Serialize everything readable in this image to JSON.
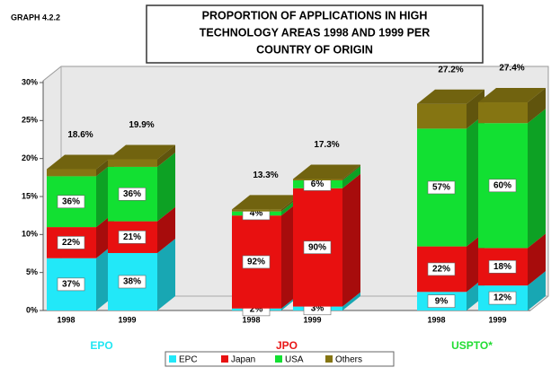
{
  "chart_data": {
    "type": "bar3d_stacked",
    "graph_id": "GRAPH 4.2.2",
    "title_lines": [
      "PROPORTION OF APPLICATIONS IN HIGH",
      "TECHNOLOGY AREAS 1998 AND 1999 PER",
      "COUNTRY OF ORIGIN"
    ],
    "ylim": [
      0,
      30
    ],
    "yticks": [
      {
        "value": 0,
        "label": "0%"
      },
      {
        "value": 5,
        "label": "5%"
      },
      {
        "value": 10,
        "label": "10%"
      },
      {
        "value": 15,
        "label": "15%"
      },
      {
        "value": 20,
        "label": "20%"
      },
      {
        "value": 25,
        "label": "25%"
      },
      {
        "value": 30,
        "label": "30%"
      }
    ],
    "groups": [
      {
        "name": "EPO",
        "color": "#22e6f2",
        "categories": [
          "1998",
          "1999"
        ],
        "totals": [
          18.6,
          19.9
        ],
        "total_labels": [
          "18.6%",
          "19.9%"
        ]
      },
      {
        "name": "JPO",
        "color": "#e81818",
        "categories": [
          "1998",
          "1999"
        ],
        "totals": [
          13.3,
          17.3
        ],
        "total_labels": [
          "13.3%",
          "17.3%"
        ]
      },
      {
        "name": "USPTO*",
        "color": "#22dd33",
        "categories": [
          "1998",
          "1999"
        ],
        "totals": [
          27.2,
          27.4
        ],
        "total_labels": [
          "27.2%",
          "27.4%"
        ]
      }
    ],
    "series": [
      {
        "name": "EPC",
        "color": "#22e8f8",
        "values": [
          37,
          38,
          2,
          3,
          9,
          12
        ],
        "value_labels": [
          "37%",
          "38%",
          "2%",
          "3%",
          "9%",
          "12%"
        ]
      },
      {
        "name": "Japan",
        "color": "#e81010",
        "values": [
          22,
          21,
          92,
          90,
          22,
          18
        ],
        "value_labels": [
          "22%",
          "21%",
          "92%",
          "90%",
          "22%",
          "18%"
        ]
      },
      {
        "name": "USA",
        "color": "#12e032",
        "values": [
          36,
          36,
          4,
          6,
          57,
          60
        ],
        "value_labels": [
          "36%",
          "36%",
          "4%",
          "6%",
          "57%",
          "60%"
        ]
      },
      {
        "name": "Others",
        "color": "#857512",
        "values": [
          5,
          5,
          2,
          1,
          12,
          10
        ]
      }
    ]
  }
}
